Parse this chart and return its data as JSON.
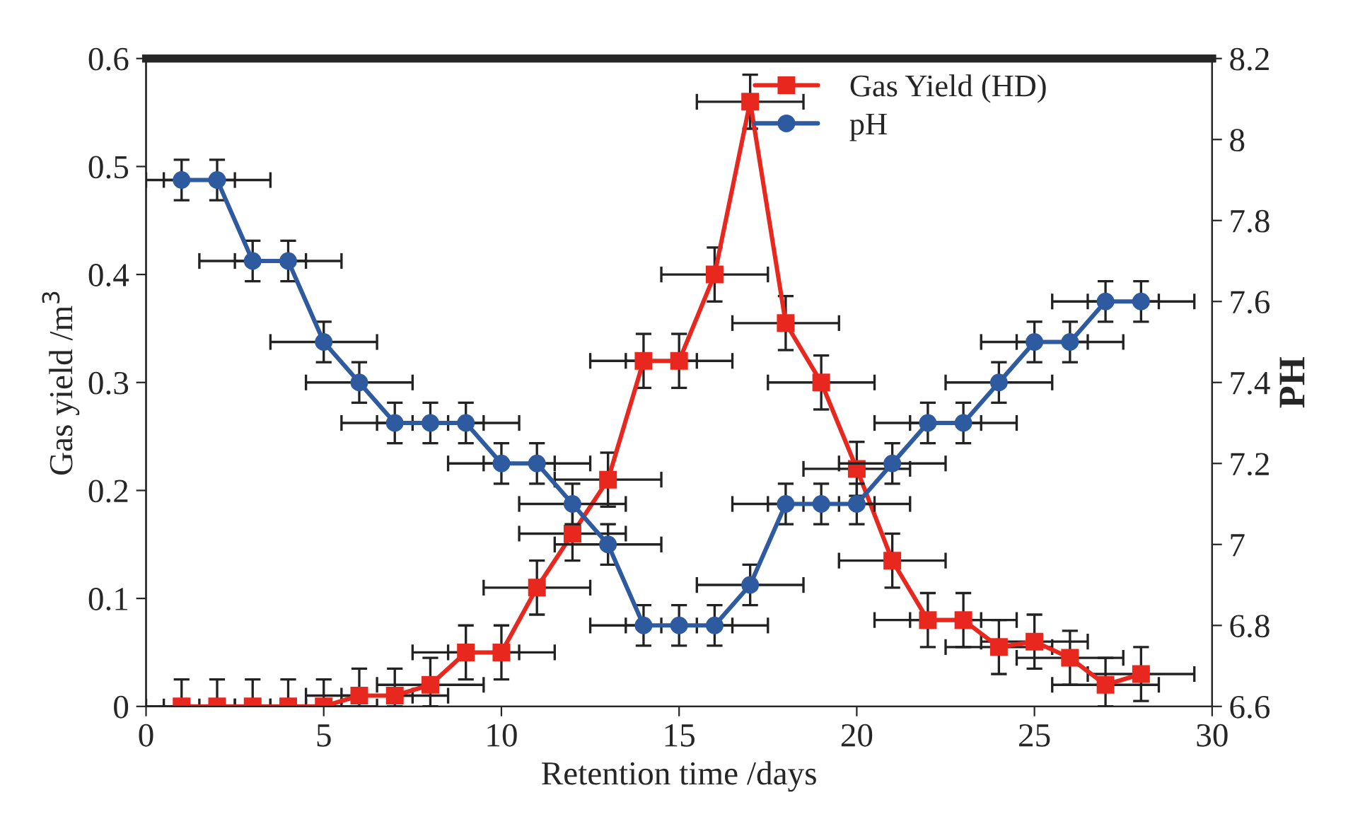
{
  "chart_data": {
    "type": "line",
    "xlabel": "Retention time /days",
    "ylabel": "Gas yield /m$^{3}$",
    "y2label": "PH",
    "x": [
      1,
      2,
      3,
      4,
      5,
      6,
      7,
      8,
      9,
      10,
      11,
      12,
      13,
      14,
      15,
      16,
      17,
      18,
      19,
      20,
      21,
      22,
      23,
      24,
      25,
      26,
      27,
      28
    ],
    "series": [
      {
        "name": "Gas Yield (HD)",
        "color": "#e8281e",
        "marker": "square",
        "values": [
          0,
          0,
          0,
          0,
          0,
          0.01,
          0.01,
          0.02,
          0.05,
          0.05,
          0.11,
          0.16,
          0.21,
          0.32,
          0.32,
          0.4,
          0.56,
          0.355,
          0.3,
          0.22,
          0.135,
          0.08,
          0.08,
          0.055,
          0.06,
          0.045,
          0.02,
          0.03
        ],
        "errors": [
          [
            0,
            0.025
          ],
          [
            0,
            0.025
          ],
          [
            0,
            0.025
          ],
          [
            0,
            0.025
          ],
          [
            0,
            0.025
          ],
          [
            0,
            0.035
          ],
          [
            0,
            0.035
          ],
          [
            0,
            0.045
          ],
          0.025,
          0.025,
          0.025,
          0.025,
          0.025,
          0.025,
          0.025,
          0.025,
          0.025,
          0.025,
          0.025,
          0.025,
          0.025,
          0.025,
          0.025,
          0.025,
          0.025,
          0.025,
          [
            0,
            0.045
          ],
          0.025
        ],
        "xerrors": [
          [
            0,
            2.5
          ],
          1.5,
          1.5,
          1.5,
          1.5,
          1.5,
          1.5,
          1.5,
          1.5,
          1.5,
          1.5,
          1.5,
          1.5,
          1.5,
          1.5,
          1.5,
          1.5,
          1.5,
          1.5,
          1.5,
          1.5,
          1.5,
          1.5,
          1.5,
          1.5,
          1.5,
          1.5,
          1.5
        ]
      },
      {
        "name": "pH",
        "color": "#2e5aa0",
        "marker": "circle",
        "axis": "y2",
        "values": [
          7.9,
          7.9,
          7.7,
          7.7,
          7.5,
          7.4,
          7.3,
          7.3,
          7.3,
          7.2,
          7.2,
          7.1,
          7.0,
          6.8,
          6.8,
          6.8,
          6.9,
          7.1,
          7.1,
          7.1,
          7.2,
          7.3,
          7.3,
          7.4,
          7.5,
          7.5,
          7.6,
          7.6
        ],
        "errors": [
          0.05,
          0.05,
          0.05,
          0.05,
          0.05,
          0.05,
          0.05,
          0.05,
          0.05,
          0.05,
          0.05,
          0.05,
          0.05,
          0.05,
          0.05,
          0.05,
          0.05,
          0.05,
          0.05,
          0.05,
          0.05,
          0.05,
          0.05,
          0.05,
          0.05,
          0.05,
          0.05,
          0.05
        ],
        "xerrors": [
          [
            0,
            2.5
          ],
          1.5,
          1.5,
          1.5,
          1.5,
          1.5,
          1.5,
          1.5,
          1.5,
          1.5,
          1.5,
          1.5,
          1.5,
          1.5,
          1.5,
          1.5,
          1.5,
          1.5,
          1.5,
          1.5,
          1.5,
          1.5,
          1.5,
          1.5,
          1.5,
          1.5,
          1.5,
          1.5
        ]
      }
    ],
    "xlim": [
      0,
      30
    ],
    "xticks": [
      0,
      5,
      10,
      15,
      20,
      25,
      30
    ],
    "ylim": [
      0,
      0.6
    ],
    "yticks": [
      0,
      0.1,
      0.2,
      0.3,
      0.4,
      0.5,
      0.6
    ],
    "y2lim": [
      6.6,
      8.2
    ],
    "y2ticks": [
      6.6,
      6.8,
      7,
      7.2,
      7.4,
      7.6,
      7.8,
      8,
      8.2
    ],
    "grid": false,
    "legend": "top right",
    "line_style": "solid"
  }
}
